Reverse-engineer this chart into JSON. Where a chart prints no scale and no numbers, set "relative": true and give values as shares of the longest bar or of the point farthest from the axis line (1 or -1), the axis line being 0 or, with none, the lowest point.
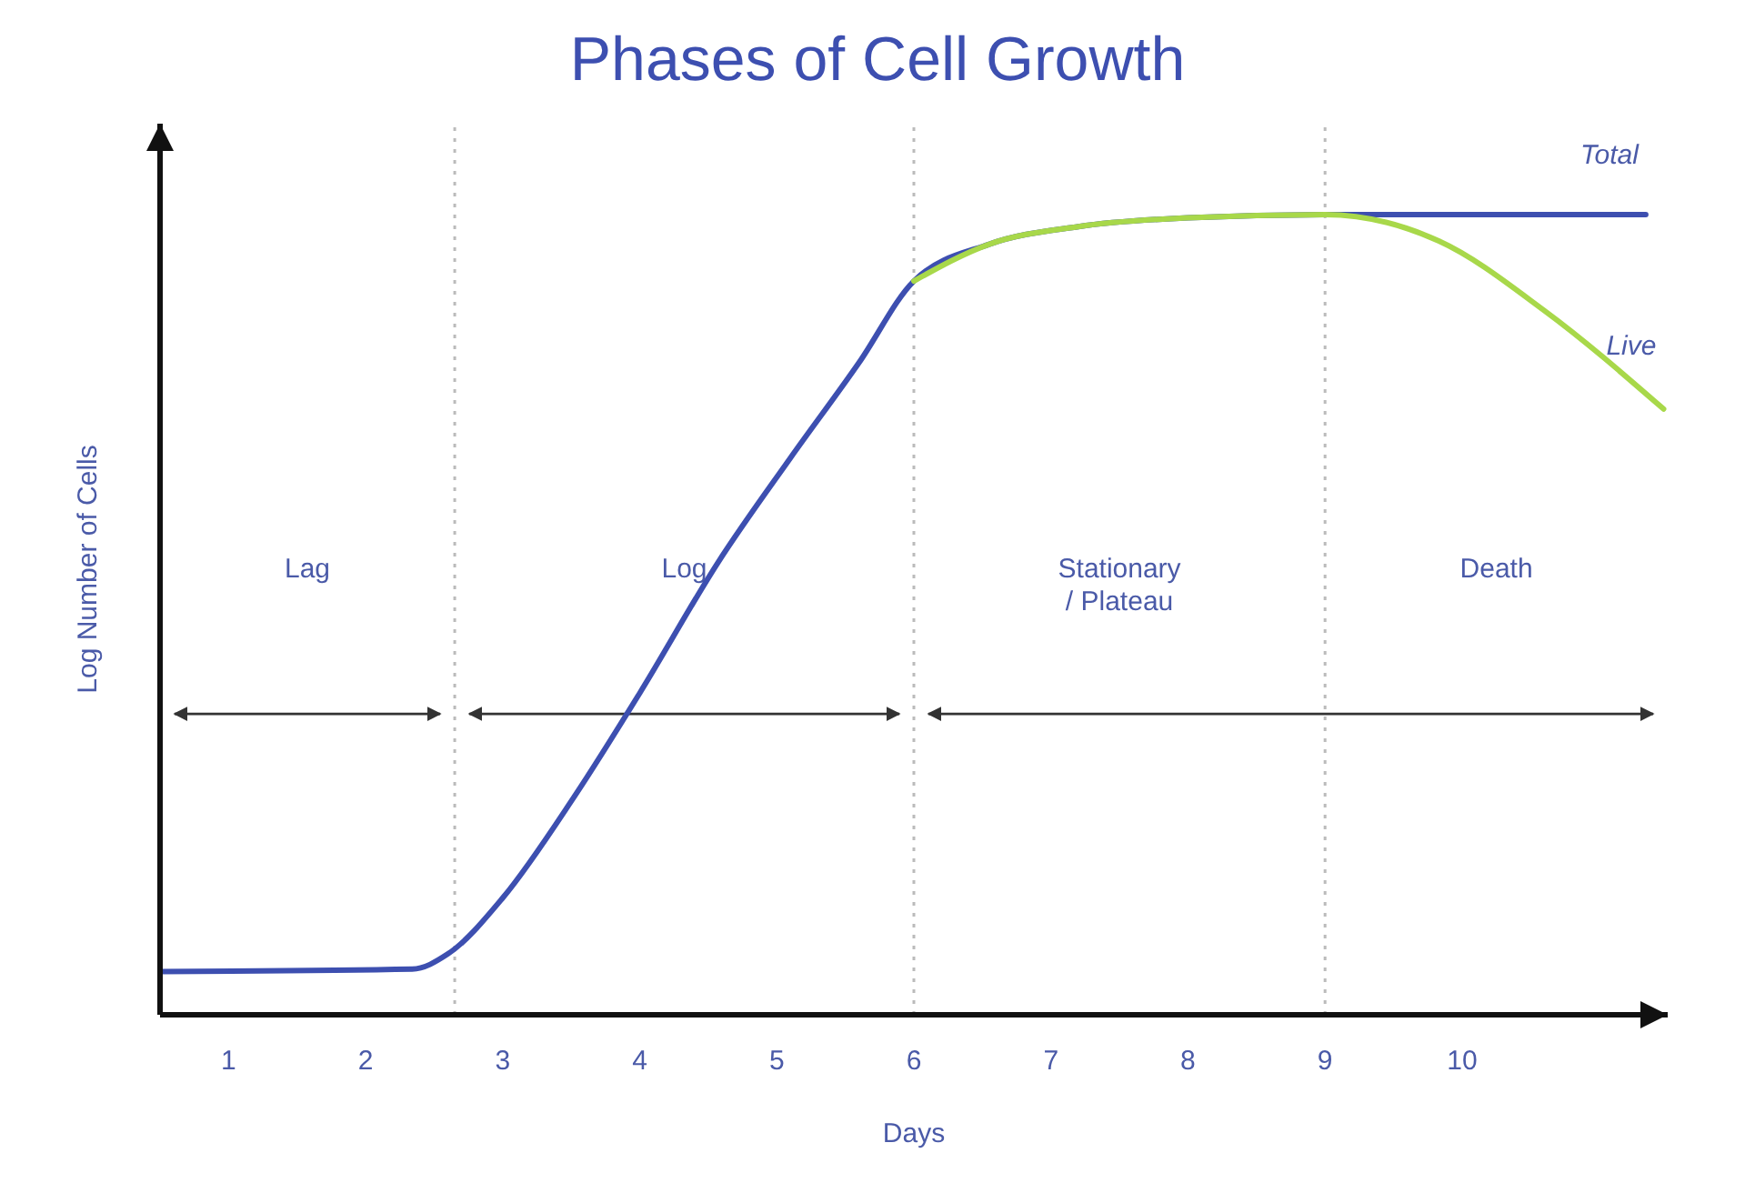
{
  "chart_data": {
    "type": "line",
    "title": "Phases of Cell Growth",
    "xlabel": "Days",
    "ylabel": "Log Number of Cells",
    "relative": true,
    "xlim": [
      0.5,
      11.5
    ],
    "xticks": [
      1,
      2,
      3,
      4,
      5,
      6,
      7,
      8,
      9,
      10
    ],
    "marker": "none",
    "line_style": "solid",
    "series": [
      {
        "name": "Total",
        "color": "#3d4fb0",
        "x": [
          0.5,
          2.34,
          2.6,
          3.0,
          3.52,
          4.0,
          4.57,
          5.1,
          5.6,
          6.0,
          6.55,
          7.2,
          8.0,
          9.0,
          11.34
        ],
        "values": [
          0.054,
          0.057,
          0.076,
          0.146,
          0.272,
          0.402,
          0.565,
          0.696,
          0.815,
          0.917,
          0.963,
          0.985,
          0.996,
          1,
          1
        ]
      },
      {
        "name": "Live",
        "color": "#a8d84a",
        "x": [
          6.0,
          6.55,
          7.2,
          8.0,
          9.0,
          9.83,
          10.6,
          11.47
        ],
        "values": [
          0.917,
          0.963,
          0.985,
          0.996,
          1,
          0.967,
          0.88,
          0.757
        ]
      }
    ],
    "ref_lines": [
      {
        "axis": "x",
        "value": 2.65,
        "line_style": "dotted",
        "color": "#bbbbbb"
      },
      {
        "axis": "x",
        "value": 6,
        "line_style": "dotted",
        "color": "#bbbbbb"
      },
      {
        "axis": "x",
        "value": 9,
        "line_style": "dotted",
        "color": "#bbbbbb"
      }
    ],
    "annotations": [
      "Lag",
      "Log",
      "Stationary / Plateau",
      "Death"
    ]
  }
}
